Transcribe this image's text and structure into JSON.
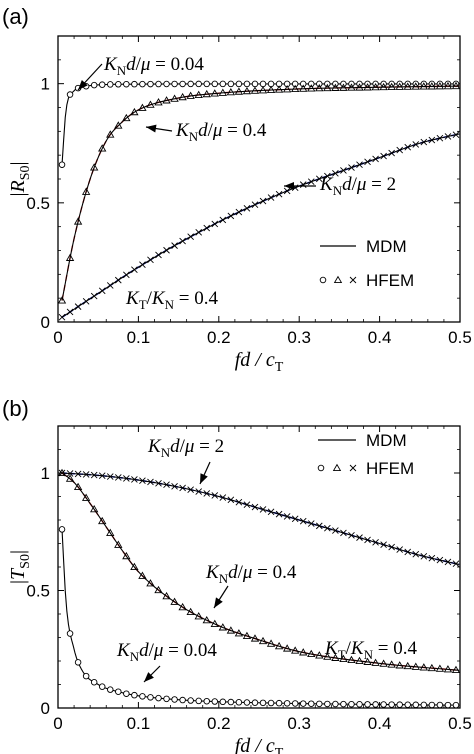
{
  "colors": {
    "mdm": "#000000",
    "hfem_low": "#000000",
    "red_ref": "#e0302a",
    "blue_ref": "#2233cc",
    "axis": "#000000"
  },
  "chart_data": [
    {
      "type": "line",
      "panel_label": "(a)",
      "xlabel_text": "fd / c",
      "xlabel_sub": "T",
      "ylabel_text": "|R",
      "ylabel_sub": "S0",
      "xlim": [
        0,
        0.5
      ],
      "ylim": [
        0,
        1.2
      ],
      "xticks": [
        "0",
        "0.1",
        "0.2",
        "0.3",
        "0.4",
        "0.5"
      ],
      "yticks": [
        "0",
        "0.5",
        "1"
      ],
      "legend": {
        "placement": "right",
        "entries": [
          {
            "label": "MDM",
            "style": "line"
          },
          {
            "label": "HFEM",
            "style": "markers"
          }
        ]
      },
      "annotations": [
        {
          "text": "K_Nd/μ = 0.04"
        },
        {
          "text": "K_Nd/μ = 0.4"
        },
        {
          "text": "K_Nd/μ = 2"
        },
        {
          "text": "K_T/K_N = 0.4"
        }
      ],
      "series": [
        {
          "name": "K_Nd/μ = 0.04",
          "model": "circle",
          "x": [
            0.005,
            0.01,
            0.02,
            0.03,
            0.05,
            0.1,
            0.2,
            0.3,
            0.4,
            0.5
          ],
          "y": [
            0.66,
            0.89,
            0.97,
            0.985,
            0.995,
            0.998,
            0.999,
            0.999,
            0.999,
            0.999
          ]
        },
        {
          "name": "K_Nd/μ = 0.4",
          "model": "triangle",
          "x": [
            0.005,
            0.02,
            0.04,
            0.06,
            0.08,
            0.1,
            0.15,
            0.2,
            0.3,
            0.4,
            0.5
          ],
          "y": [
            0.09,
            0.35,
            0.6,
            0.76,
            0.84,
            0.89,
            0.94,
            0.96,
            0.978,
            0.985,
            0.99
          ]
        },
        {
          "name": "K_Nd/μ = 2",
          "model": "cross",
          "x": [
            0.005,
            0.05,
            0.1,
            0.15,
            0.2,
            0.25,
            0.3,
            0.35,
            0.4,
            0.45,
            0.5
          ],
          "y": [
            0.02,
            0.12,
            0.23,
            0.33,
            0.42,
            0.5,
            0.57,
            0.63,
            0.69,
            0.75,
            0.79
          ]
        }
      ]
    },
    {
      "type": "line",
      "panel_label": "(b)",
      "xlabel_text": "fd / c",
      "xlabel_sub": "T",
      "ylabel_text": "|T",
      "ylabel_sub": "S0",
      "xlim": [
        0,
        0.5
      ],
      "ylim": [
        0,
        1.2
      ],
      "xticks": [
        "0",
        "0.1",
        "0.2",
        "0.3",
        "0.4",
        "0.5"
      ],
      "yticks": [
        "0",
        "0.5",
        "1"
      ],
      "legend": {
        "placement": "top-right",
        "entries": [
          {
            "label": "MDM",
            "style": "line"
          },
          {
            "label": "HFEM",
            "style": "markers"
          }
        ]
      },
      "annotations": [
        {
          "text": "K_Nd/μ = 2"
        },
        {
          "text": "K_Nd/μ = 0.4"
        },
        {
          "text": "K_Nd/μ = 0.04"
        },
        {
          "text": "K_T/K_N = 0.4"
        }
      ],
      "series": [
        {
          "name": "K_Nd/μ = 2",
          "model": "cross",
          "x": [
            0.005,
            0.05,
            0.1,
            0.15,
            0.2,
            0.25,
            0.3,
            0.35,
            0.4,
            0.45,
            0.5
          ],
          "y": [
            1.0,
            0.99,
            0.97,
            0.94,
            0.9,
            0.85,
            0.8,
            0.75,
            0.7,
            0.65,
            0.61
          ]
        },
        {
          "name": "K_Nd/μ = 0.4",
          "model": "triangle",
          "x": [
            0.005,
            0.02,
            0.04,
            0.06,
            0.08,
            0.1,
            0.15,
            0.2,
            0.25,
            0.3,
            0.4,
            0.5
          ],
          "y": [
            1.0,
            0.96,
            0.87,
            0.77,
            0.67,
            0.58,
            0.44,
            0.35,
            0.29,
            0.24,
            0.19,
            0.16
          ]
        },
        {
          "name": "K_Nd/μ = 0.04",
          "model": "circle",
          "x": [
            0.005,
            0.01,
            0.02,
            0.03,
            0.05,
            0.08,
            0.1,
            0.15,
            0.2,
            0.3,
            0.4,
            0.5
          ],
          "y": [
            0.76,
            0.45,
            0.25,
            0.16,
            0.1,
            0.065,
            0.052,
            0.035,
            0.027,
            0.019,
            0.015,
            0.012
          ]
        }
      ]
    }
  ]
}
